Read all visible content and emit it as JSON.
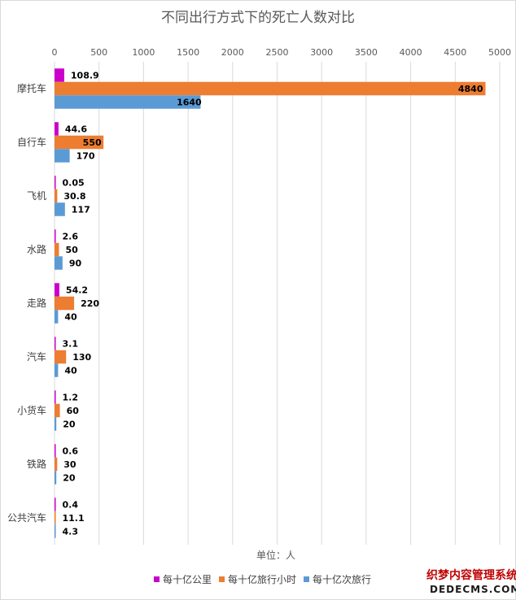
{
  "chart_data": {
    "type": "bar",
    "orientation": "horizontal",
    "title": "不同出行方式下的死亡人数对比",
    "xlabel": "单位：人",
    "ylabel": "",
    "xlim": [
      0,
      5000
    ],
    "xticks": [
      0,
      500,
      1000,
      1500,
      2000,
      2500,
      3000,
      3500,
      4000,
      4500,
      5000
    ],
    "x_axis_position": "top",
    "grid": true,
    "legend_position": "bottom",
    "categories": [
      "摩托车",
      "自行车",
      "飞机",
      "水路",
      "走路",
      "汽车",
      "小货车",
      "铁路",
      "公共汽车"
    ],
    "series": [
      {
        "name": "每十亿公里",
        "color": "#cc00cc",
        "values": [
          108.9,
          44.6,
          0.05,
          2.6,
          54.2,
          3.1,
          1.2,
          0.6,
          0.4
        ],
        "labels": [
          "108.9",
          "44.6",
          "0.05",
          "2.6",
          "54.2",
          "3.1",
          "1.2",
          "0.6",
          "0.4"
        ]
      },
      {
        "name": "每十亿旅行小时",
        "color": "#ed7d31",
        "values": [
          4840,
          550,
          30.8,
          50,
          220,
          130,
          60,
          30,
          11.1
        ],
        "labels": [
          "4840",
          "550",
          "30.8",
          "50",
          "220",
          "130",
          "60",
          "30",
          "11.1"
        ]
      },
      {
        "name": "每十亿次旅行",
        "color": "#5b9bd5",
        "values": [
          1640,
          170,
          117,
          90,
          40,
          40,
          20,
          20,
          4.3
        ],
        "labels": [
          "1640",
          "170",
          "117",
          "90",
          "40",
          "40",
          "20",
          "20",
          "4.3"
        ]
      }
    ]
  },
  "watermark": {
    "cn": "织梦内容管理系统",
    "en": "DEDECMS.COM"
  }
}
